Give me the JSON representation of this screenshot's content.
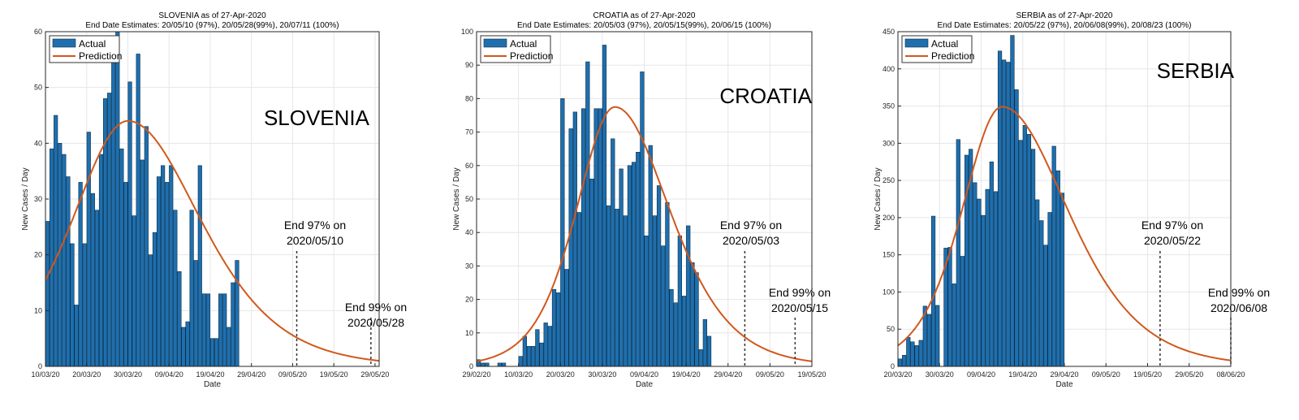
{
  "chart_data": [
    {
      "type": "bar",
      "country": "SLOVENIA",
      "title": "SLOVENIA as of 27-Apr-2020",
      "subtitle": "End Date Estimates: 20/05/10 (97%), 20/05/28(99%), 20/07/11 (100%)",
      "xlabel": "Date",
      "ylabel": "New Cases / Day",
      "start_date": "2020-03-10",
      "xlim_dates": [
        "2020-03-10",
        "2020-05-30"
      ],
      "ylim": [
        0,
        60
      ],
      "yticks": [
        0,
        10,
        20,
        30,
        40,
        50,
        60
      ],
      "xtick_dates": [
        "2020-03-10",
        "2020-03-20",
        "2020-03-30",
        "2020-04-09",
        "2020-04-19",
        "2020-04-29",
        "2020-05-09",
        "2020-05-19",
        "2020-05-29"
      ],
      "xtick_labels": [
        "10/03/20",
        "20/03/20",
        "30/03/20",
        "09/04/20",
        "19/04/20",
        "29/04/20",
        "09/05/20",
        "19/05/20",
        "29/05/20"
      ],
      "series": [
        {
          "name": "Actual",
          "type": "bar",
          "values": [
            26,
            39,
            45,
            40,
            38,
            34,
            22,
            11,
            33,
            22,
            42,
            31,
            28,
            38,
            48,
            49,
            58,
            60,
            39,
            33,
            51,
            27,
            56,
            37,
            43,
            20,
            24,
            34,
            36,
            33,
            36,
            28,
            17,
            7,
            8,
            28,
            19,
            36,
            13,
            13,
            5,
            5,
            13,
            13,
            7,
            15,
            19
          ]
        },
        {
          "name": "Prediction",
          "type": "line",
          "curve": {
            "peak_date": "2020-03-30",
            "peak_value": 44,
            "start_value": 15.5,
            "end_value": 1
          }
        }
      ],
      "annotations": [
        {
          "line1": "End 97% on",
          "line2": "2020/05/10",
          "date": "2020-05-10"
        },
        {
          "line1": "End 99% on",
          "line2": "2020/05/28",
          "date": "2020-05-28"
        }
      ],
      "legend_position": "top-left",
      "grid": true,
      "colors": {
        "bar": "#1f6fae",
        "line": "#d1581d"
      }
    },
    {
      "type": "bar",
      "country": "CROATIA",
      "title": "CROATIA as of 27-Apr-2020",
      "subtitle": "End Date Estimates: 20/05/03 (97%), 20/05/15(99%), 20/06/15 (100%)",
      "xlabel": "Date",
      "ylabel": "New Cases / Day",
      "start_date": "2020-02-29",
      "xlim_dates": [
        "2020-02-29",
        "2020-05-19"
      ],
      "ylim": [
        0,
        100
      ],
      "yticks": [
        0,
        10,
        20,
        30,
        40,
        50,
        60,
        70,
        80,
        90,
        100
      ],
      "xtick_dates": [
        "2020-02-29",
        "2020-03-10",
        "2020-03-20",
        "2020-03-30",
        "2020-04-09",
        "2020-04-19",
        "2020-04-29",
        "2020-05-09",
        "2020-05-19"
      ],
      "xtick_labels": [
        "29/02/20",
        "10/03/20",
        "20/03/20",
        "30/03/20",
        "09/04/20",
        "19/04/20",
        "29/04/20",
        "09/05/20",
        "19/05/20"
      ],
      "series": [
        {
          "name": "Actual",
          "type": "bar",
          "values": [
            2,
            1,
            1,
            0,
            0,
            1,
            1,
            0,
            0,
            0,
            3,
            9,
            6,
            6,
            11,
            7,
            13,
            12,
            23,
            22,
            80,
            29,
            71,
            76,
            46,
            77,
            91,
            56,
            77,
            77,
            96,
            48,
            68,
            47,
            59,
            45,
            60,
            61,
            64,
            88,
            39,
            66,
            45,
            54,
            36,
            49,
            23,
            19,
            39,
            21,
            42,
            31,
            28,
            5,
            14,
            9
          ]
        },
        {
          "name": "Prediction",
          "type": "line",
          "curve": {
            "peak_date": "2020-04-02",
            "peak_value": 77.5,
            "start_value": 1.5,
            "end_value": 1.5
          }
        }
      ],
      "annotations": [
        {
          "line1": "End 97% on",
          "line2": "2020/05/03",
          "date": "2020-05-03"
        },
        {
          "line1": "End 99% on",
          "line2": "2020/05/15",
          "date": "2020-05-15"
        }
      ],
      "legend_position": "top-left",
      "grid": true,
      "colors": {
        "bar": "#1f6fae",
        "line": "#d1581d"
      }
    },
    {
      "type": "bar",
      "country": "SERBIA",
      "title": "SERBIA as of 27-Apr-2020",
      "subtitle": "End Date Estimates: 20/05/22 (97%), 20/06/08(99%), 20/08/23 (100%)",
      "xlabel": "Date",
      "ylabel": "New Cases / Day",
      "start_date": "2020-03-20",
      "xlim_dates": [
        "2020-03-20",
        "2020-06-08"
      ],
      "ylim": [
        0,
        450
      ],
      "yticks": [
        0,
        50,
        100,
        150,
        200,
        250,
        300,
        350,
        400,
        450
      ],
      "xtick_dates": [
        "2020-03-20",
        "2020-03-30",
        "2020-04-09",
        "2020-04-19",
        "2020-04-29",
        "2020-05-09",
        "2020-05-19",
        "2020-05-29",
        "2020-06-08"
      ],
      "xtick_labels": [
        "20/03/20",
        "30/03/20",
        "09/04/20",
        "19/04/20",
        "29/04/20",
        "09/05/20",
        "19/05/20",
        "29/05/20",
        "08/06/20"
      ],
      "series": [
        {
          "name": "Actual",
          "type": "bar",
          "values": [
            10,
            15,
            39,
            33,
            28,
            35,
            81,
            70,
            202,
            82,
            0,
            159,
            160,
            111,
            305,
            148,
            284,
            292,
            247,
            225,
            203,
            238,
            275,
            235,
            424,
            412,
            409,
            445,
            372,
            304,
            324,
            312,
            292,
            224,
            196,
            163,
            207,
            296,
            263,
            233
          ]
        },
        {
          "name": "Prediction",
          "type": "line",
          "curve": {
            "peak_date": "2020-04-14",
            "peak_value": 349,
            "start_value": 28,
            "end_value": 8
          }
        }
      ],
      "annotations": [
        {
          "line1": "End 97% on",
          "line2": "2020/05/22",
          "date": "2020-05-22"
        },
        {
          "line1": "End 99% on",
          "line2": "2020/06/08",
          "date": "2020-06-08"
        }
      ],
      "legend_position": "top-left",
      "grid": true,
      "colors": {
        "bar": "#1f6fae",
        "line": "#d1581d"
      }
    }
  ],
  "legend": {
    "actual": "Actual",
    "prediction": "Prediction"
  }
}
